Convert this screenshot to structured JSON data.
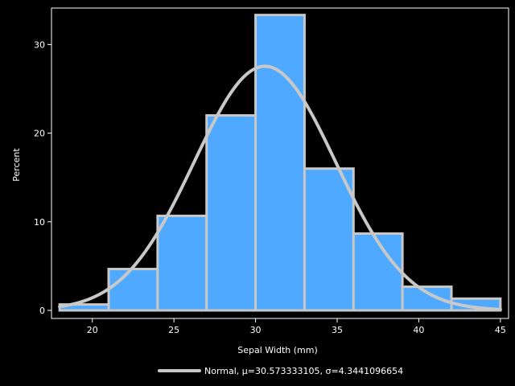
{
  "chart_data": {
    "type": "bar",
    "subtype": "histogram",
    "xlabel": "Sepal Width (mm)",
    "ylabel": "Percent",
    "xlim": [
      17.5,
      45.5
    ],
    "ylim": [
      0,
      33.3
    ],
    "xticks": [
      20,
      25,
      30,
      35,
      40,
      45
    ],
    "yticks": [
      0,
      10,
      20,
      30
    ],
    "bins": [
      {
        "start": 18,
        "end": 21,
        "value": 0.67
      },
      {
        "start": 21,
        "end": 24,
        "value": 4.67
      },
      {
        "start": 24,
        "end": 27,
        "value": 10.67
      },
      {
        "start": 27,
        "end": 30,
        "value": 22.0
      },
      {
        "start": 30,
        "end": 33,
        "value": 33.33
      },
      {
        "start": 33,
        "end": 36,
        "value": 16.0
      },
      {
        "start": 36,
        "end": 39,
        "value": 8.67
      },
      {
        "start": 39,
        "end": 42,
        "value": 2.67
      },
      {
        "start": 42,
        "end": 45,
        "value": 1.33
      }
    ],
    "curve": {
      "type": "normal",
      "mu": 30.573333105,
      "sigma": 4.3441096654,
      "bin_width": 3,
      "x_range": [
        18,
        45
      ]
    },
    "legend": {
      "label": "Normal, μ=30.573333105, σ=4.3441096654",
      "placement": "bottom"
    },
    "colors": {
      "background": "#000000",
      "bar_fill": "#4fa9ff",
      "bar_outline": "#c8c8c8",
      "curve": "#c8c8c8",
      "axis": "#ffffff",
      "text": "#ffffff"
    }
  }
}
